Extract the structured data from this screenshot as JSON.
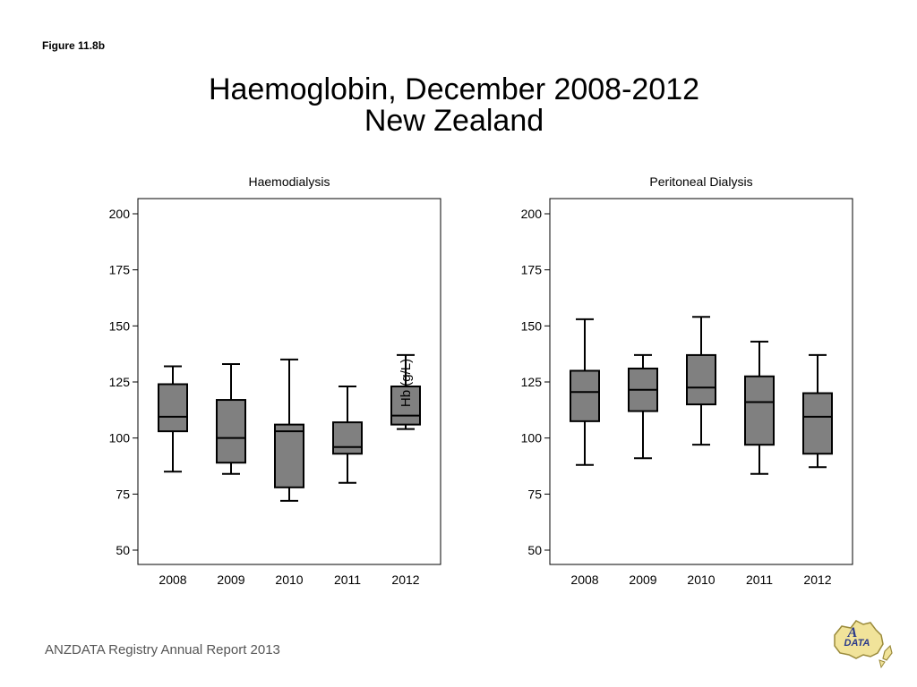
{
  "figure_label": "Figure 11.8b",
  "title_line1": "Haemoglobin, December 2008-2012",
  "title_line2": "New Zealand",
  "footer": "ANZDATA Registry Annual Report 2013",
  "logo_text": "ANZDATA",
  "colors": {
    "box_fill": "#808080",
    "line": "#000000"
  },
  "chart_data": [
    {
      "type": "boxplot",
      "title": "Haemodialysis",
      "ylabel": "Hb (g/L)",
      "ylim": [
        50,
        200
      ],
      "yticks": [
        50,
        75,
        100,
        125,
        150,
        175,
        200
      ],
      "categories": [
        "2008",
        "2009",
        "2010",
        "2011",
        "2012"
      ],
      "boxes": [
        {
          "min": 85,
          "q1": 103,
          "median": 109.5,
          "q3": 124,
          "max": 132
        },
        {
          "min": 84,
          "q1": 89,
          "median": 100,
          "q3": 117,
          "max": 133
        },
        {
          "min": 72,
          "q1": 78,
          "median": 103,
          "q3": 106,
          "max": 135
        },
        {
          "min": 80,
          "q1": 93,
          "median": 96,
          "q3": 107,
          "max": 123
        },
        {
          "min": 104,
          "q1": 106,
          "median": 110,
          "q3": 123,
          "max": 137
        }
      ],
      "grid": false
    },
    {
      "type": "boxplot",
      "title": "Peritoneal Dialysis",
      "ylim": [
        50,
        200
      ],
      "yticks": [
        50,
        75,
        100,
        125,
        150,
        175,
        200
      ],
      "categories": [
        "2008",
        "2009",
        "2010",
        "2011",
        "2012"
      ],
      "boxes": [
        {
          "min": 88,
          "q1": 107.5,
          "median": 120.5,
          "q3": 130,
          "max": 153
        },
        {
          "min": 91,
          "q1": 112,
          "median": 121.5,
          "q3": 131,
          "max": 137
        },
        {
          "min": 97,
          "q1": 115,
          "median": 122.5,
          "q3": 137,
          "max": 154
        },
        {
          "min": 84,
          "q1": 97,
          "median": 116,
          "q3": 127.5,
          "max": 143
        },
        {
          "min": 87,
          "q1": 93,
          "median": 109.5,
          "q3": 120,
          "max": 137
        }
      ],
      "grid": false
    }
  ]
}
